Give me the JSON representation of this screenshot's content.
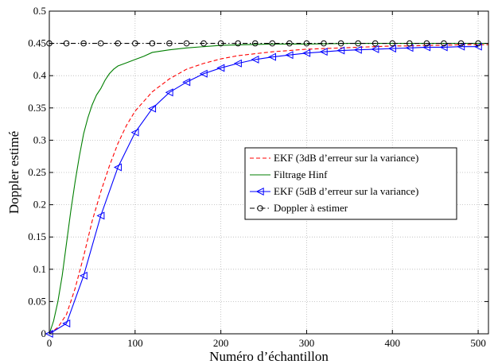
{
  "chart_data": {
    "type": "line",
    "title": "",
    "xlabel": "Numéro d’échantillon",
    "ylabel": "Doppler estimé",
    "xlim": [
      0,
      512
    ],
    "ylim": [
      0,
      0.5
    ],
    "xticks": [
      "0",
      "100",
      "200",
      "300",
      "400",
      "500"
    ],
    "xtick_values": [
      0,
      100,
      200,
      300,
      400,
      500
    ],
    "yticks": [
      "0",
      "0.05",
      "0.1",
      "0.15",
      "0.2",
      "0.25",
      "0.3",
      "0.35",
      "0.4",
      "0.45",
      "0.5"
    ],
    "ytick_values": [
      0,
      0.05,
      0.1,
      0.15,
      0.2,
      0.25,
      0.3,
      0.35,
      0.4,
      0.45,
      0.5
    ],
    "grid": true,
    "legend_position": "center-right",
    "series": [
      {
        "name": "EKF (3dB d’erreur sur la variance)",
        "color": "#ff0000",
        "style": "dashed",
        "marker": "none",
        "x": [
          0,
          10,
          20,
          30,
          40,
          50,
          60,
          70,
          80,
          90,
          100,
          120,
          140,
          160,
          180,
          200,
          220,
          240,
          260,
          280,
          300,
          320,
          340,
          360,
          380,
          400,
          420,
          440,
          460,
          480,
          500,
          512
        ],
        "y": [
          0,
          0.01,
          0.03,
          0.07,
          0.12,
          0.175,
          0.22,
          0.26,
          0.295,
          0.323,
          0.345,
          0.375,
          0.395,
          0.41,
          0.419,
          0.426,
          0.431,
          0.434,
          0.437,
          0.439,
          0.441,
          0.442,
          0.443,
          0.444,
          0.445,
          0.446,
          0.446,
          0.447,
          0.447,
          0.448,
          0.448,
          0.448
        ]
      },
      {
        "name": "Filtrage Hinf",
        "color": "#007f00",
        "style": "solid",
        "marker": "none",
        "x": [
          0,
          5,
          10,
          15,
          20,
          25,
          30,
          35,
          40,
          45,
          50,
          55,
          60,
          65,
          70,
          75,
          80,
          90,
          100,
          110,
          120,
          140,
          160,
          180,
          200,
          230,
          260,
          300,
          350,
          400,
          450,
          512
        ],
        "y": [
          0,
          0.02,
          0.05,
          0.09,
          0.14,
          0.19,
          0.235,
          0.275,
          0.31,
          0.335,
          0.355,
          0.37,
          0.38,
          0.393,
          0.403,
          0.41,
          0.415,
          0.42,
          0.425,
          0.43,
          0.436,
          0.44,
          0.443,
          0.445,
          0.447,
          0.448,
          0.449,
          0.449,
          0.45,
          0.45,
          0.45,
          0.45
        ]
      },
      {
        "name": "EKF (5dB d’erreur sur la variance)",
        "color": "#0000ff",
        "style": "solid",
        "marker": "triangle-left",
        "x": [
          0,
          20,
          40,
          60,
          80,
          100,
          120,
          140,
          160,
          180,
          200,
          220,
          240,
          260,
          280,
          300,
          320,
          340,
          360,
          380,
          400,
          420,
          440,
          460,
          480,
          500
        ],
        "y": [
          0,
          0.016,
          0.09,
          0.183,
          0.258,
          0.312,
          0.349,
          0.374,
          0.39,
          0.403,
          0.412,
          0.419,
          0.425,
          0.429,
          0.432,
          0.435,
          0.437,
          0.439,
          0.44,
          0.441,
          0.442,
          0.443,
          0.444,
          0.444,
          0.445,
          0.445
        ]
      },
      {
        "name": "Doppler à estimer",
        "color": "#000000",
        "style": "dashdot",
        "marker": "circle",
        "x": [
          0,
          20,
          40,
          60,
          80,
          100,
          120,
          140,
          160,
          180,
          200,
          220,
          240,
          260,
          280,
          300,
          320,
          340,
          360,
          380,
          400,
          420,
          440,
          460,
          480,
          500
        ],
        "y": [
          0.45,
          0.45,
          0.45,
          0.45,
          0.45,
          0.45,
          0.45,
          0.45,
          0.45,
          0.45,
          0.45,
          0.45,
          0.45,
          0.45,
          0.45,
          0.45,
          0.45,
          0.45,
          0.45,
          0.45,
          0.45,
          0.45,
          0.45,
          0.45,
          0.45,
          0.45
        ]
      }
    ]
  }
}
